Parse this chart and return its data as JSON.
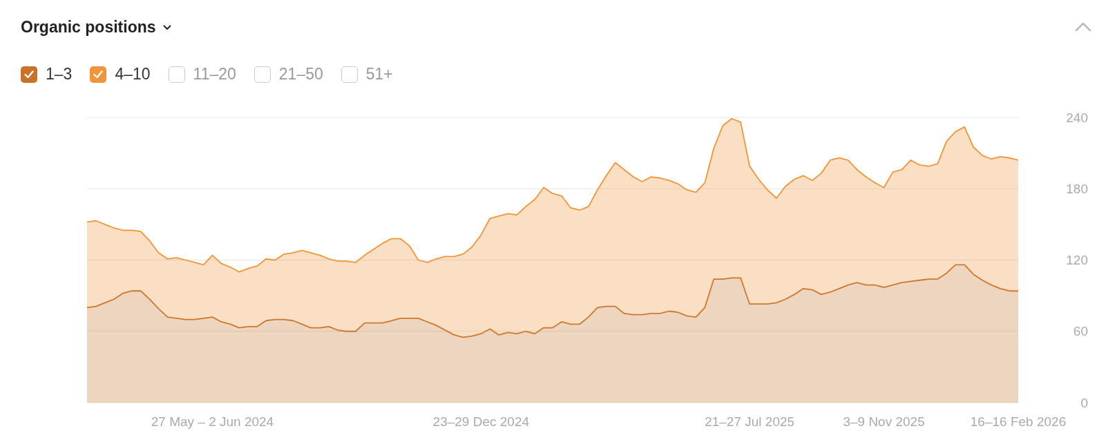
{
  "chart_data": {
    "type": "area",
    "title": "Organic positions",
    "stacked": true,
    "legend": "top left",
    "grid": "y",
    "tick_labels": "xy",
    "categories": [
      null,
      null,
      null,
      null,
      null,
      null,
      null,
      null,
      null,
      null,
      null,
      null,
      null,
      null,
      "27 May – 2 Jun 2024",
      null,
      null,
      null,
      null,
      null,
      null,
      null,
      null,
      null,
      null,
      null,
      null,
      null,
      null,
      null,
      null,
      null,
      null,
      null,
      null,
      null,
      null,
      null,
      null,
      null,
      null,
      null,
      null,
      null,
      "23–29 Dec 2024",
      null,
      null,
      null,
      null,
      null,
      null,
      null,
      null,
      null,
      null,
      null,
      null,
      null,
      null,
      null,
      null,
      null,
      null,
      null,
      null,
      null,
      null,
      null,
      null,
      null,
      null,
      null,
      null,
      null,
      "21–27 Jul 2025",
      null,
      null,
      null,
      null,
      null,
      null,
      null,
      null,
      null,
      null,
      null,
      null,
      null,
      null,
      "3–9 Nov 2025",
      null,
      null,
      null,
      null,
      null,
      null,
      null,
      null,
      null,
      null,
      null,
      null,
      null,
      null,
      "16–16 Feb 2026"
    ],
    "ylim": [
      0,
      240
    ],
    "yticks": [
      0,
      60,
      120,
      180,
      240
    ],
    "series": [
      {
        "name": "1–3",
        "color": "#c8732a",
        "values": [
          80,
          81,
          84,
          87,
          92,
          94,
          94,
          87,
          79,
          72,
          71,
          70,
          70,
          71,
          72,
          68,
          66,
          63,
          64,
          64,
          69,
          70,
          70,
          69,
          66,
          63,
          63,
          64,
          61,
          60,
          60,
          67,
          67,
          67,
          69,
          71,
          71,
          71,
          68,
          65,
          61,
          57,
          55,
          56,
          58,
          62,
          57,
          59,
          58,
          60,
          58,
          63,
          63,
          68,
          66,
          66,
          72,
          80,
          81,
          81,
          75,
          74,
          74,
          75,
          75,
          77,
          76,
          73,
          72,
          80,
          104,
          104,
          105,
          105,
          83,
          83,
          83,
          84,
          87,
          91,
          96,
          95,
          91,
          93,
          96,
          99,
          101,
          99,
          99,
          97,
          99,
          101,
          102,
          103,
          104,
          104,
          109,
          116,
          116,
          108,
          103,
          99,
          96,
          94,
          94
        ]
      },
      {
        "name": "4–10",
        "color": "#f0953a",
        "values": [
          72,
          72,
          66,
          60,
          53,
          51,
          50,
          49,
          47,
          49,
          51,
          50,
          48,
          45,
          52,
          49,
          48,
          47,
          49,
          51,
          52,
          50,
          55,
          57,
          62,
          63,
          61,
          57,
          58,
          59,
          58,
          57,
          62,
          67,
          69,
          67,
          61,
          49,
          50,
          56,
          62,
          66,
          70,
          75,
          83,
          93,
          100,
          100,
          100,
          105,
          113,
          118,
          113,
          106,
          98,
          96,
          93,
          99,
          110,
          121,
          121,
          116,
          112,
          115,
          114,
          110,
          108,
          106,
          105,
          105,
          110,
          129,
          134,
          131,
          116,
          105,
          96,
          88,
          95,
          97,
          95,
          92,
          102,
          111,
          110,
          105,
          95,
          91,
          86,
          84,
          95,
          95,
          102,
          97,
          95,
          97,
          111,
          112,
          116,
          107,
          105,
          106,
          111,
          112,
          110
        ]
      },
      {
        "name": "11–20",
        "values": [
          null,
          null,
          null,
          null,
          null,
          null,
          null,
          null,
          null,
          null,
          null,
          null,
          null,
          null,
          null,
          null,
          null,
          null,
          null,
          null,
          null,
          null,
          null,
          null,
          null,
          null,
          null,
          null,
          null,
          null,
          null,
          null,
          null,
          null,
          null,
          null,
          null,
          null,
          null,
          null,
          null,
          null,
          null,
          null,
          null,
          null,
          null,
          null,
          null,
          null,
          null,
          null,
          null,
          null,
          null,
          null,
          null,
          null,
          null,
          null,
          null,
          null,
          null,
          null,
          null,
          null,
          null,
          null,
          null,
          null,
          null,
          null,
          null,
          null,
          null,
          null,
          null,
          null,
          null,
          null,
          null,
          null,
          null,
          null,
          null,
          null,
          null,
          null,
          null,
          null,
          null,
          null,
          null,
          null,
          null,
          null,
          null,
          null,
          null,
          null,
          null,
          null,
          null,
          null,
          null
        ]
      },
      {
        "name": "21–50",
        "values": [
          null,
          null,
          null,
          null,
          null,
          null,
          null,
          null,
          null,
          null,
          null,
          null,
          null,
          null,
          null,
          null,
          null,
          null,
          null,
          null,
          null,
          null,
          null,
          null,
          null,
          null,
          null,
          null,
          null,
          null,
          null,
          null,
          null,
          null,
          null,
          null,
          null,
          null,
          null,
          null,
          null,
          null,
          null,
          null,
          null,
          null,
          null,
          null,
          null,
          null,
          null,
          null,
          null,
          null,
          null,
          null,
          null,
          null,
          null,
          null,
          null,
          null,
          null,
          null,
          null,
          null,
          null,
          null,
          null,
          null,
          null,
          null,
          null,
          null,
          null,
          null,
          null,
          null,
          null,
          null,
          null,
          null,
          null,
          null,
          null,
          null,
          null,
          null,
          null,
          null,
          null,
          null,
          null,
          null,
          null,
          null,
          null,
          null,
          null,
          null,
          null,
          null,
          null,
          null,
          null
        ]
      },
      {
        "name": "51+",
        "values": [
          null,
          null,
          null,
          null,
          null,
          null,
          null,
          null,
          null,
          null,
          null,
          null,
          null,
          null,
          null,
          null,
          null,
          null,
          null,
          null,
          null,
          null,
          null,
          null,
          null,
          null,
          null,
          null,
          null,
          null,
          null,
          null,
          null,
          null,
          null,
          null,
          null,
          null,
          null,
          null,
          null,
          null,
          null,
          null,
          null,
          null,
          null,
          null,
          null,
          null,
          null,
          null,
          null,
          null,
          null,
          null,
          null,
          null,
          null,
          null,
          null,
          null,
          null,
          null,
          null,
          null,
          null,
          null,
          null,
          null,
          null,
          null,
          null,
          null,
          null,
          null,
          null,
          null,
          null,
          null,
          null,
          null,
          null,
          null,
          null,
          null,
          null,
          null,
          null,
          null,
          null,
          null,
          null,
          null,
          null,
          null,
          null,
          null,
          null,
          null,
          null,
          null,
          null,
          null,
          null
        ]
      }
    ]
  }
}
